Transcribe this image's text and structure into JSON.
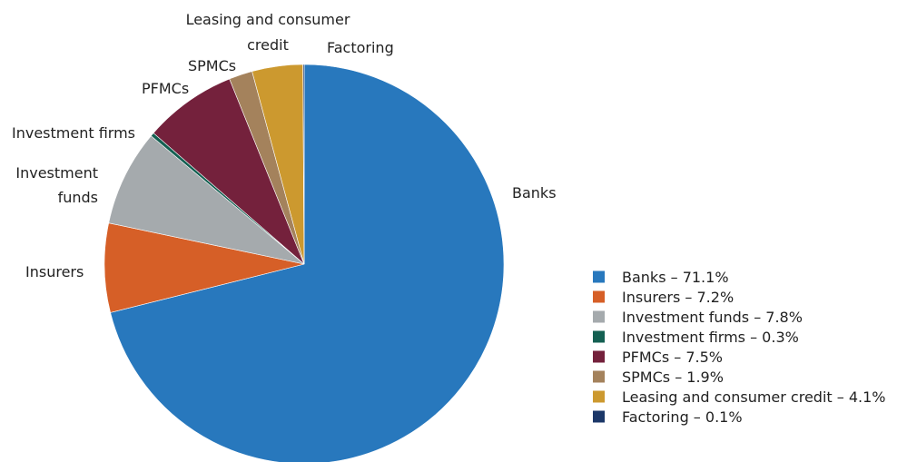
{
  "chart_data": {
    "type": "pie",
    "title": "",
    "slices": [
      {
        "name": "Banks",
        "value": 71.1,
        "color": "#2878bd",
        "label_lines": [
          "Banks"
        ],
        "legend": "Banks – 71.1%"
      },
      {
        "name": "Insurers",
        "value": 7.2,
        "color": "#d65f27",
        "label_lines": [
          "Insurers"
        ],
        "legend": "Insurers – 7.2%"
      },
      {
        "name": "Investment funds",
        "value": 7.8,
        "color": "#a5aaad",
        "label_lines": [
          "Investment",
          "funds"
        ],
        "legend": "Investment funds – 7.8%"
      },
      {
        "name": "Investment firms",
        "value": 0.3,
        "color": "#146052",
        "label_lines": [
          "Investment firms"
        ],
        "legend": "Investment firms – 0.3%"
      },
      {
        "name": "PFMCs",
        "value": 7.5,
        "color": "#74213c",
        "label_lines": [
          "PFMCs"
        ],
        "legend": "PFMCs – 7.5%"
      },
      {
        "name": "SPMCs",
        "value": 1.9,
        "color": "#a4825c",
        "label_lines": [
          "SPMCs"
        ],
        "legend": "SPMCs – 1.9%"
      },
      {
        "name": "Leasing and consumer credit",
        "value": 4.1,
        "color": "#cc992f",
        "label_lines": [
          "Leasing and consumer",
          "credit"
        ],
        "legend": "Leasing and consumer credit – 4.1%"
      },
      {
        "name": "Factoring",
        "value": 0.1,
        "color": "#1b3768",
        "label_lines": [
          "Factoring"
        ],
        "legend": "Factoring – 0.1%"
      }
    ],
    "legend_position": "bottom-right",
    "start_angle": "12 o'clock",
    "direction": "clockwise",
    "slice_order": [
      "Banks",
      "Insurers",
      "Investment funds",
      "Investment firms",
      "PFMCs",
      "SPMCs",
      "Leasing and consumer credit",
      "Factoring"
    ]
  }
}
